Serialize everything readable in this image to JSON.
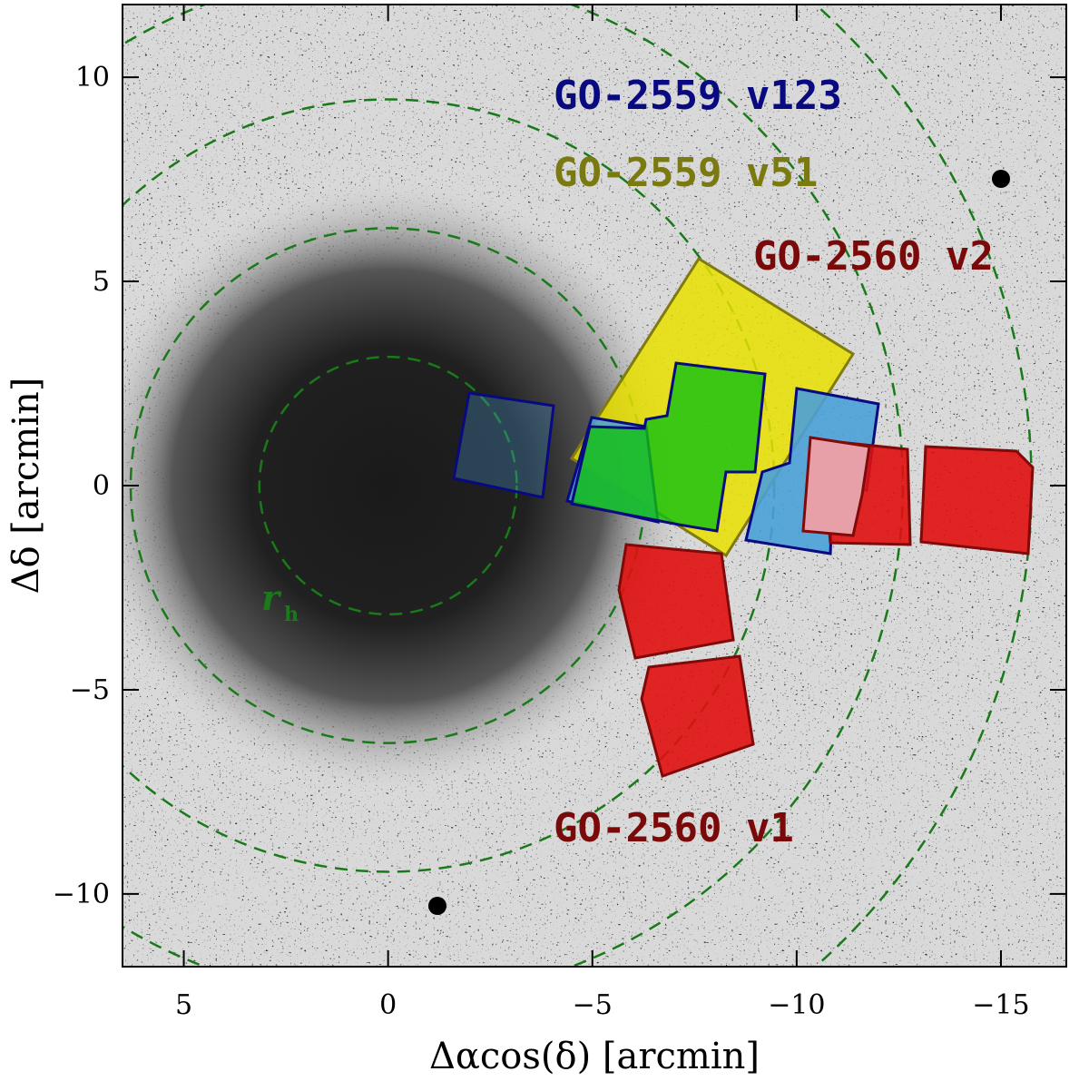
{
  "chart_data": {
    "type": "sky-map",
    "xlabel": "Δαcos(δ) [arcmin]",
    "ylabel": "Δδ [arcmin]",
    "xlim": [
      6.5,
      -16.6
    ],
    "ylim": [
      -11.78,
      11.78
    ],
    "xticks": [
      5,
      0,
      {
        "value": -5,
        "label": "−5"
      },
      {
        "value": -10,
        "label": "−10"
      },
      {
        "value": -15,
        "label": "−15"
      }
    ],
    "yticks": [
      {
        "value": -10,
        "label": "−10"
      },
      {
        "value": -5,
        "label": "−5"
      },
      0,
      5,
      10
    ],
    "ring_radii": [
      3.15,
      6.3,
      9.45,
      12.6,
      15.75
    ],
    "ring_label": "r",
    "ring_label_sub": "h",
    "annotations": [
      {
        "text": "GO-2559 v123",
        "color": "#0a0a80"
      },
      {
        "text": "GO-2559 v51",
        "color": "#7a7a10"
      },
      {
        "text": "GO-2560 v2",
        "color": "#7a0a0a"
      },
      {
        "text": "GO-2560 v1",
        "color": "#7a0a0a"
      }
    ]
  }
}
